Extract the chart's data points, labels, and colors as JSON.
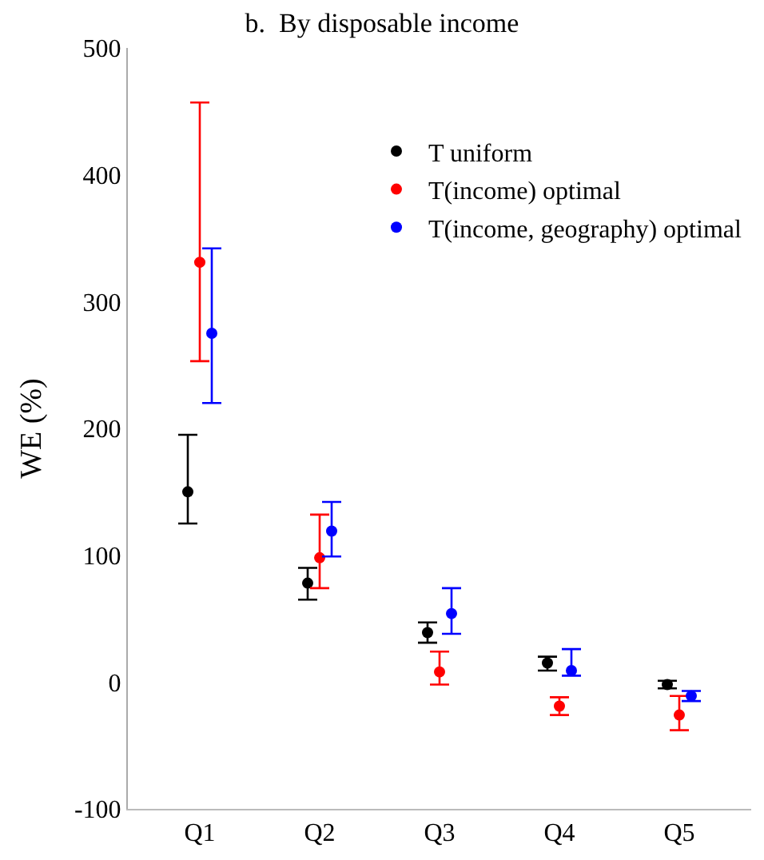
{
  "chart_data": {
    "type": "scatter",
    "title": "b.  By disposable income",
    "ylabel": "WE (%)",
    "categories": [
      "Q1",
      "Q2",
      "Q3",
      "Q4",
      "Q5"
    ],
    "ylim": [
      -100,
      500
    ],
    "yticks": [
      -100,
      0,
      100,
      200,
      300,
      400,
      500
    ],
    "legend": "top right",
    "marker": "circle",
    "series": [
      {
        "name": "T uniform",
        "color": "#000000",
        "values": [
          150,
          78,
          39,
          15,
          -2
        ],
        "errors": [
          [
            125,
            195
          ],
          [
            65,
            90
          ],
          [
            31,
            47
          ],
          [
            9,
            20
          ],
          [
            -5,
            1
          ]
        ]
      },
      {
        "name": "T(income) optimal",
        "color": "#ff0000",
        "values": [
          331,
          98,
          8,
          -19,
          -26
        ],
        "errors": [
          [
            253,
            457
          ],
          [
            74,
            132
          ],
          [
            -2,
            24
          ],
          [
            -26,
            -12
          ],
          [
            -38,
            -11
          ]
        ]
      },
      {
        "name": "T(income, geography) optimal",
        "color": "#0000ff",
        "values": [
          275,
          119,
          54,
          9,
          -11
        ],
        "errors": [
          [
            220,
            342
          ],
          [
            99,
            142
          ],
          [
            38,
            74
          ],
          [
            5,
            26
          ],
          [
            -15,
            -7
          ]
        ]
      }
    ]
  }
}
